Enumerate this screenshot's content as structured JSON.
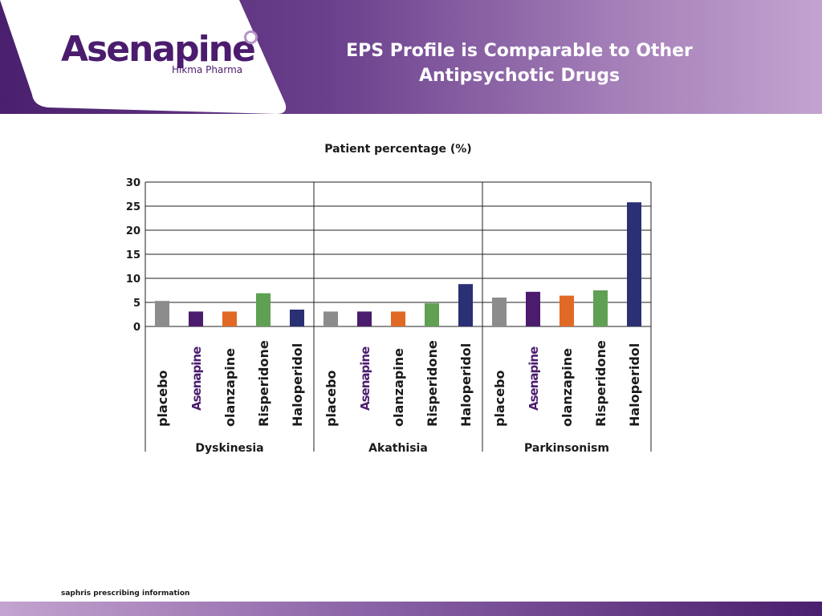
{
  "header": {
    "brand_name": "Asenapine",
    "brand_sub": "Hikma Pharma",
    "title_line1": "EPS Profile is Comparable to Other",
    "title_line2": "Antipsychotic Drugs"
  },
  "footer": {
    "note": "saphris prescribing information"
  },
  "chart_data": {
    "type": "bar",
    "title": "Patient percentage (%)",
    "ylim": [
      0,
      30
    ],
    "yticks": [
      "0",
      "5",
      "10",
      "15",
      "20",
      "25",
      "30"
    ],
    "grid": true,
    "categories": [
      "placebo",
      "Asenapine",
      "olanzapine",
      "Risperidone",
      "Haloperidol"
    ],
    "groups": [
      {
        "name": "Dyskinesia",
        "values": [
          5.3,
          3.1,
          3.1,
          6.9,
          3.5
        ]
      },
      {
        "name": "Akathisia",
        "values": [
          3.1,
          3.1,
          3.1,
          4.8,
          8.8
        ]
      },
      {
        "name": "Parkinsonism",
        "values": [
          6.0,
          7.2,
          6.4,
          7.5,
          25.8
        ]
      }
    ],
    "colors": [
      "#8c8c8c",
      "#4b1c6e",
      "#e06a25",
      "#5fa053",
      "#2b2f74"
    ]
  }
}
